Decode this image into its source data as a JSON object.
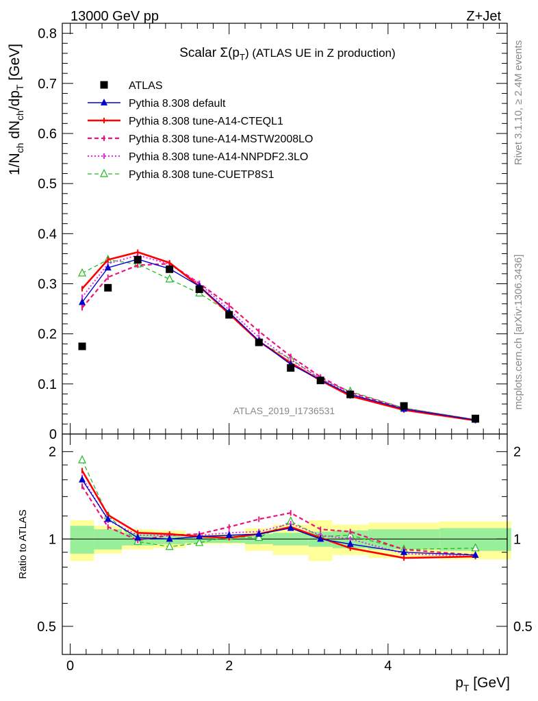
{
  "header": {
    "left": "13000 GeV pp",
    "right": "Z+Jet"
  },
  "side_text": {
    "rivet": "Rivet 3.1.10, ≥ 2.4M events",
    "mcplots": "mcplots.cern.ch [arXiv:1306.3436]"
  },
  "chart_data": [
    {
      "type": "scatter",
      "title": "Scalar Σ(p_T) (ATLAS UE in Z production)",
      "xlabel": "p_T [GeV]",
      "ylabel": "1/N_ch dN_ch/dp_T [GeV]",
      "watermark": "ATLAS_2019_I1736531",
      "xlim": [
        -0.1,
        5.5
      ],
      "ylim": [
        0,
        0.82
      ],
      "yticks": [
        0,
        0.1,
        0.2,
        0.3,
        0.4,
        0.5,
        0.6,
        0.7,
        0.8
      ],
      "ytick_labels": [
        "0",
        "0.1",
        "0.2",
        "0.3",
        "0.4",
        "0.5",
        "0.6",
        "0.7",
        "0.8"
      ],
      "legend_position": "top-left",
      "x": [
        0.15,
        0.475,
        0.85,
        1.25,
        1.625,
        2.0,
        2.375,
        2.775,
        3.15,
        3.525,
        4.2,
        5.1
      ],
      "series": [
        {
          "name": "ATLAS",
          "marker": "square",
          "color": "#000000",
          "line": "none",
          "values": [
            0.175,
            0.292,
            0.348,
            0.329,
            0.289,
            0.238,
            0.183,
            0.132,
            0.107,
            0.079,
            0.056,
            0.031
          ]
        },
        {
          "name": "Pythia 8.308 default",
          "marker": "triangle",
          "color": "#0000cc",
          "line": "solid",
          "values": [
            0.263,
            0.332,
            0.349,
            0.33,
            0.295,
            0.243,
            0.186,
            0.139,
            0.108,
            0.079,
            0.05,
            0.028
          ]
        },
        {
          "name": "Pythia 8.308 tune-A14-CTEQL1",
          "marker": "none",
          "color": "#ff0000",
          "line": "thick",
          "values": [
            0.29,
            0.348,
            0.363,
            0.342,
            0.295,
            0.24,
            0.185,
            0.142,
            0.107,
            0.076,
            0.048,
            0.027
          ]
        },
        {
          "name": "Pythia 8.308 tune-A14-MSTW2008LO",
          "marker": "none",
          "color": "#ee1177",
          "line": "dashed",
          "values": [
            0.252,
            0.313,
            0.337,
            0.34,
            0.301,
            0.257,
            0.205,
            0.155,
            0.114,
            0.083,
            0.051,
            0.028
          ]
        },
        {
          "name": "Pythia 8.308 tune-A14-NNPDF2.3LO",
          "marker": "none",
          "color": "#ee22ee",
          "line": "dotted",
          "values": [
            0.273,
            0.34,
            0.357,
            0.339,
            0.3,
            0.248,
            0.193,
            0.148,
            0.111,
            0.08,
            0.049,
            0.027
          ]
        },
        {
          "name": "Pythia 8.308 tune-CUETP8S1",
          "marker": "open-triangle",
          "color": "#22bb22",
          "line": "dashed",
          "values": [
            0.321,
            0.348,
            0.339,
            0.309,
            0.281,
            0.243,
            0.184,
            0.15,
            0.109,
            0.085,
            0.052,
            0.029
          ]
        }
      ]
    },
    {
      "type": "line",
      "ylabel": "Ratio to ATLAS",
      "xlabel": "p_T [GeV]",
      "xlim": [
        -0.1,
        5.5
      ],
      "ylim": [
        0.4,
        2.3
      ],
      "log_y": true,
      "xticks": [
        0,
        2,
        4
      ],
      "xtick_labels": [
        "0",
        "2",
        "4"
      ],
      "yticks": [
        0.5,
        1,
        2
      ],
      "ytick_labels": [
        "0.5",
        "1",
        "2"
      ],
      "reference_line": 1,
      "bin_edges": [
        0.0,
        0.3,
        0.65,
        1.05,
        1.45,
        1.8,
        2.2,
        2.55,
        3.0,
        3.3,
        3.75,
        4.65,
        5.55
      ],
      "bands": {
        "stat": [
          0.11,
          0.08,
          0.05,
          0.04,
          0.03,
          0.03,
          0.04,
          0.05,
          0.06,
          0.07,
          0.08,
          0.09
        ],
        "total": [
          0.16,
          0.11,
          0.08,
          0.07,
          0.04,
          0.04,
          0.09,
          0.12,
          0.16,
          0.12,
          0.14,
          0.15
        ]
      },
      "x": [
        0.15,
        0.475,
        0.85,
        1.25,
        1.625,
        2.0,
        2.375,
        2.775,
        3.15,
        3.525,
        4.2,
        5.1
      ],
      "series": [
        {
          "name": "Pythia 8.308 default",
          "color": "#0000cc",
          "line": "solid",
          "marker": "triangle",
          "values": [
            1.6,
            1.17,
            1.01,
            1.0,
            1.02,
            1.03,
            1.04,
            1.09,
            1.0,
            0.96,
            0.9,
            0.88
          ]
        },
        {
          "name": "Pythia 8.308 tune-A14-CTEQL1",
          "color": "#ff0000",
          "line": "thick",
          "marker": "none",
          "values": [
            1.72,
            1.21,
            1.05,
            1.04,
            1.02,
            1.01,
            1.04,
            1.1,
            1.01,
            0.93,
            0.86,
            0.87
          ]
        },
        {
          "name": "Pythia 8.308 tune-A14-MSTW2008LO",
          "color": "#ee1177",
          "line": "dashed",
          "marker": "none",
          "values": [
            1.52,
            1.1,
            0.99,
            1.03,
            1.04,
            1.1,
            1.17,
            1.23,
            1.08,
            1.06,
            0.92,
            0.88
          ]
        },
        {
          "name": "Pythia 8.308 tune-A14-NNPDF2.3LO",
          "color": "#ee22ee",
          "line": "dotted",
          "marker": "none",
          "values": [
            1.63,
            1.16,
            1.03,
            1.03,
            1.03,
            1.05,
            1.06,
            1.13,
            1.03,
            1.0,
            0.89,
            0.87
          ]
        },
        {
          "name": "Pythia 8.308 tune-CUETP8S1",
          "color": "#22bb22",
          "line": "dashed",
          "marker": "open-triangle",
          "values": [
            1.87,
            1.2,
            0.98,
            0.94,
            0.97,
            1.02,
            1.01,
            1.15,
            1.02,
            1.03,
            0.92,
            0.93
          ]
        }
      ]
    }
  ]
}
